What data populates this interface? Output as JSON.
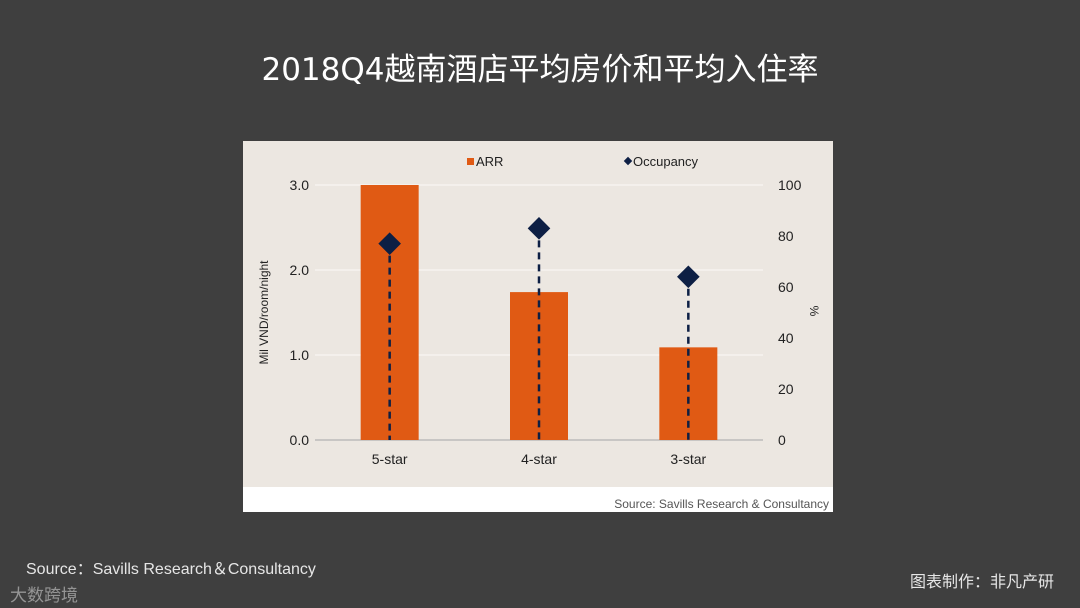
{
  "title": "2018Q4越南酒店平均房价和平均入住率",
  "footer": {
    "source": "Source：Savills Research＆Consultancy",
    "credit": "图表制作：非凡产研",
    "watermark": "大数跨境"
  },
  "chart_data": {
    "type": "bar",
    "categories": [
      "5-star",
      "4-star",
      "3-star"
    ],
    "series": [
      {
        "name": "ARR",
        "type": "bar",
        "axis": "left",
        "values": [
          3.0,
          1.74,
          1.09
        ],
        "color": "#e05a14"
      },
      {
        "name": "Occupancy",
        "type": "scatter",
        "marker": "diamond",
        "axis": "right",
        "values": [
          77,
          83,
          64
        ],
        "color": "#0d1f44",
        "dropline": "dashed"
      }
    ],
    "ylabel": "Mil VND/room/night",
    "y2label": "%",
    "ylim": [
      0,
      3.0
    ],
    "y2lim": [
      0,
      100
    ],
    "yticks": [
      "0.0",
      "1.0",
      "2.0",
      "3.0"
    ],
    "y2ticks": [
      "0",
      "20",
      "40",
      "60",
      "80",
      "100"
    ],
    "legend": "top",
    "grid": true,
    "source_note": "Source: Savills Research & Consultancy"
  }
}
